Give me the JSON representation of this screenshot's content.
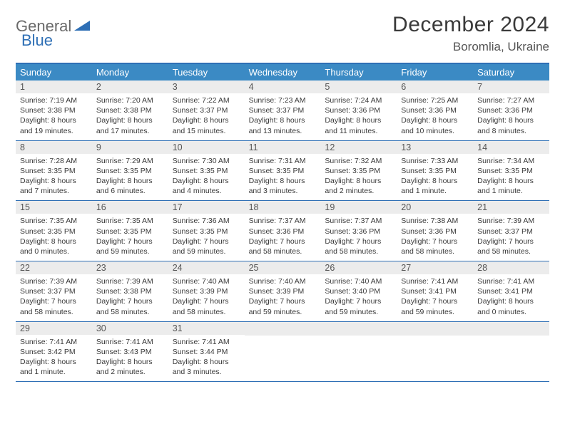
{
  "logo": {
    "word1": "General",
    "word2": "Blue"
  },
  "title": "December 2024",
  "location": "Boromlia, Ukraine",
  "colors": {
    "header_bar": "#3b8ac4",
    "rule": "#2e6fb5",
    "daynum_bg": "#ececec",
    "text": "#3a3a3a",
    "logo_gray": "#6a6a6a",
    "logo_blue": "#2e6fb5"
  },
  "weekdays": [
    "Sunday",
    "Monday",
    "Tuesday",
    "Wednesday",
    "Thursday",
    "Friday",
    "Saturday"
  ],
  "weeks": [
    [
      {
        "n": "1",
        "sr": "Sunrise: 7:19 AM",
        "ss": "Sunset: 3:38 PM",
        "d1": "Daylight: 8 hours",
        "d2": "and 19 minutes."
      },
      {
        "n": "2",
        "sr": "Sunrise: 7:20 AM",
        "ss": "Sunset: 3:38 PM",
        "d1": "Daylight: 8 hours",
        "d2": "and 17 minutes."
      },
      {
        "n": "3",
        "sr": "Sunrise: 7:22 AM",
        "ss": "Sunset: 3:37 PM",
        "d1": "Daylight: 8 hours",
        "d2": "and 15 minutes."
      },
      {
        "n": "4",
        "sr": "Sunrise: 7:23 AM",
        "ss": "Sunset: 3:37 PM",
        "d1": "Daylight: 8 hours",
        "d2": "and 13 minutes."
      },
      {
        "n": "5",
        "sr": "Sunrise: 7:24 AM",
        "ss": "Sunset: 3:36 PM",
        "d1": "Daylight: 8 hours",
        "d2": "and 11 minutes."
      },
      {
        "n": "6",
        "sr": "Sunrise: 7:25 AM",
        "ss": "Sunset: 3:36 PM",
        "d1": "Daylight: 8 hours",
        "d2": "and 10 minutes."
      },
      {
        "n": "7",
        "sr": "Sunrise: 7:27 AM",
        "ss": "Sunset: 3:36 PM",
        "d1": "Daylight: 8 hours",
        "d2": "and 8 minutes."
      }
    ],
    [
      {
        "n": "8",
        "sr": "Sunrise: 7:28 AM",
        "ss": "Sunset: 3:35 PM",
        "d1": "Daylight: 8 hours",
        "d2": "and 7 minutes."
      },
      {
        "n": "9",
        "sr": "Sunrise: 7:29 AM",
        "ss": "Sunset: 3:35 PM",
        "d1": "Daylight: 8 hours",
        "d2": "and 6 minutes."
      },
      {
        "n": "10",
        "sr": "Sunrise: 7:30 AM",
        "ss": "Sunset: 3:35 PM",
        "d1": "Daylight: 8 hours",
        "d2": "and 4 minutes."
      },
      {
        "n": "11",
        "sr": "Sunrise: 7:31 AM",
        "ss": "Sunset: 3:35 PM",
        "d1": "Daylight: 8 hours",
        "d2": "and 3 minutes."
      },
      {
        "n": "12",
        "sr": "Sunrise: 7:32 AM",
        "ss": "Sunset: 3:35 PM",
        "d1": "Daylight: 8 hours",
        "d2": "and 2 minutes."
      },
      {
        "n": "13",
        "sr": "Sunrise: 7:33 AM",
        "ss": "Sunset: 3:35 PM",
        "d1": "Daylight: 8 hours",
        "d2": "and 1 minute."
      },
      {
        "n": "14",
        "sr": "Sunrise: 7:34 AM",
        "ss": "Sunset: 3:35 PM",
        "d1": "Daylight: 8 hours",
        "d2": "and 1 minute."
      }
    ],
    [
      {
        "n": "15",
        "sr": "Sunrise: 7:35 AM",
        "ss": "Sunset: 3:35 PM",
        "d1": "Daylight: 8 hours",
        "d2": "and 0 minutes."
      },
      {
        "n": "16",
        "sr": "Sunrise: 7:35 AM",
        "ss": "Sunset: 3:35 PM",
        "d1": "Daylight: 7 hours",
        "d2": "and 59 minutes."
      },
      {
        "n": "17",
        "sr": "Sunrise: 7:36 AM",
        "ss": "Sunset: 3:35 PM",
        "d1": "Daylight: 7 hours",
        "d2": "and 59 minutes."
      },
      {
        "n": "18",
        "sr": "Sunrise: 7:37 AM",
        "ss": "Sunset: 3:36 PM",
        "d1": "Daylight: 7 hours",
        "d2": "and 58 minutes."
      },
      {
        "n": "19",
        "sr": "Sunrise: 7:37 AM",
        "ss": "Sunset: 3:36 PM",
        "d1": "Daylight: 7 hours",
        "d2": "and 58 minutes."
      },
      {
        "n": "20",
        "sr": "Sunrise: 7:38 AM",
        "ss": "Sunset: 3:36 PM",
        "d1": "Daylight: 7 hours",
        "d2": "and 58 minutes."
      },
      {
        "n": "21",
        "sr": "Sunrise: 7:39 AM",
        "ss": "Sunset: 3:37 PM",
        "d1": "Daylight: 7 hours",
        "d2": "and 58 minutes."
      }
    ],
    [
      {
        "n": "22",
        "sr": "Sunrise: 7:39 AM",
        "ss": "Sunset: 3:37 PM",
        "d1": "Daylight: 7 hours",
        "d2": "and 58 minutes."
      },
      {
        "n": "23",
        "sr": "Sunrise: 7:39 AM",
        "ss": "Sunset: 3:38 PM",
        "d1": "Daylight: 7 hours",
        "d2": "and 58 minutes."
      },
      {
        "n": "24",
        "sr": "Sunrise: 7:40 AM",
        "ss": "Sunset: 3:39 PM",
        "d1": "Daylight: 7 hours",
        "d2": "and 58 minutes."
      },
      {
        "n": "25",
        "sr": "Sunrise: 7:40 AM",
        "ss": "Sunset: 3:39 PM",
        "d1": "Daylight: 7 hours",
        "d2": "and 59 minutes."
      },
      {
        "n": "26",
        "sr": "Sunrise: 7:40 AM",
        "ss": "Sunset: 3:40 PM",
        "d1": "Daylight: 7 hours",
        "d2": "and 59 minutes."
      },
      {
        "n": "27",
        "sr": "Sunrise: 7:41 AM",
        "ss": "Sunset: 3:41 PM",
        "d1": "Daylight: 7 hours",
        "d2": "and 59 minutes."
      },
      {
        "n": "28",
        "sr": "Sunrise: 7:41 AM",
        "ss": "Sunset: 3:41 PM",
        "d1": "Daylight: 8 hours",
        "d2": "and 0 minutes."
      }
    ],
    [
      {
        "n": "29",
        "sr": "Sunrise: 7:41 AM",
        "ss": "Sunset: 3:42 PM",
        "d1": "Daylight: 8 hours",
        "d2": "and 1 minute."
      },
      {
        "n": "30",
        "sr": "Sunrise: 7:41 AM",
        "ss": "Sunset: 3:43 PM",
        "d1": "Daylight: 8 hours",
        "d2": "and 2 minutes."
      },
      {
        "n": "31",
        "sr": "Sunrise: 7:41 AM",
        "ss": "Sunset: 3:44 PM",
        "d1": "Daylight: 8 hours",
        "d2": "and 3 minutes."
      },
      {
        "empty": true
      },
      {
        "empty": true
      },
      {
        "empty": true
      },
      {
        "empty": true
      }
    ]
  ]
}
